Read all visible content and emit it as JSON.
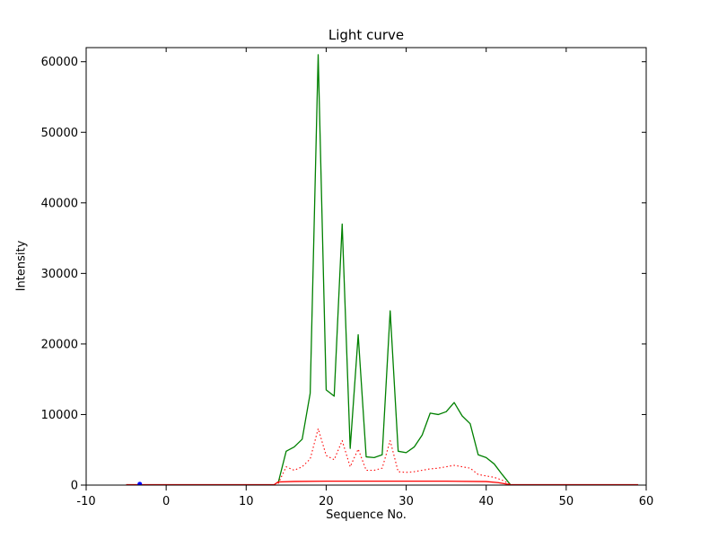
{
  "chart_data": {
    "type": "line",
    "title": "Light curve",
    "xlabel": "Sequence No.",
    "ylabel": "Intensity",
    "xlim": [
      -10,
      60
    ],
    "ylim": [
      0,
      62000
    ],
    "xticks": [
      -10,
      0,
      10,
      20,
      30,
      40,
      50,
      60
    ],
    "yticks": [
      0,
      10000,
      20000,
      30000,
      40000,
      50000,
      60000
    ],
    "grid": false,
    "legend_position": "none",
    "series": [
      {
        "name": "green-line",
        "color": "#008000",
        "style": "solid",
        "x": [
          14,
          15,
          16,
          17,
          18,
          19,
          20,
          21,
          22,
          23,
          24,
          25,
          26,
          27,
          28,
          29,
          30,
          31,
          32,
          33,
          34,
          35,
          36,
          37,
          38,
          39,
          40,
          41,
          42,
          43
        ],
        "y": [
          300,
          4800,
          5400,
          6500,
          13000,
          61000,
          13500,
          12600,
          37000,
          5200,
          21300,
          4000,
          3900,
          4300,
          24700,
          4800,
          4600,
          5400,
          7100,
          10200,
          10000,
          10400,
          11700,
          9800,
          8700,
          4300,
          3900,
          3000,
          1500,
          100
        ]
      },
      {
        "name": "red-dotted-line",
        "color": "#ff0000",
        "style": "dotted",
        "x": [
          14,
          15,
          16,
          17,
          18,
          19,
          20,
          21,
          22,
          23,
          24,
          25,
          26,
          27,
          28,
          29,
          30,
          31,
          32,
          33,
          34,
          35,
          36,
          37,
          38,
          39,
          40,
          41,
          42,
          43
        ],
        "y": [
          200,
          2600,
          2100,
          2600,
          3700,
          8000,
          4200,
          3600,
          6300,
          2600,
          5100,
          2100,
          2100,
          2400,
          6300,
          1900,
          1800,
          1900,
          2100,
          2300,
          2400,
          2600,
          2800,
          2600,
          2400,
          1500,
          1300,
          1100,
          700,
          100
        ]
      },
      {
        "name": "red-solid-line",
        "color": "#ff0000",
        "style": "solid",
        "x": [
          -5,
          0,
          5,
          10,
          13.5,
          14,
          16,
          20,
          25,
          30,
          35,
          40,
          41.5,
          43,
          50,
          55,
          59
        ],
        "y": [
          60,
          60,
          60,
          60,
          60,
          450,
          520,
          560,
          560,
          560,
          560,
          500,
          350,
          60,
          60,
          60,
          60
        ]
      },
      {
        "name": "blue-marker",
        "color": "#0000ff",
        "style": "marker",
        "x": [
          -3.3
        ],
        "y": [
          150
        ]
      }
    ]
  }
}
